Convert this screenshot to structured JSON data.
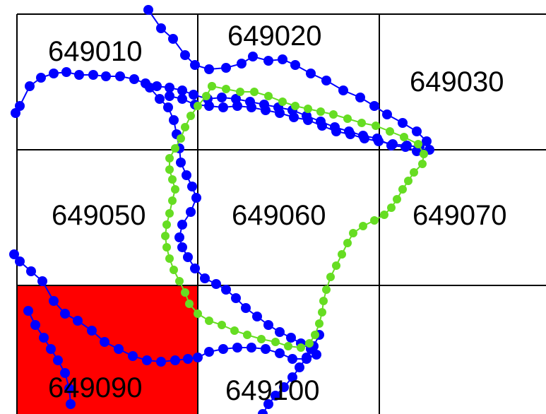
{
  "map": {
    "highlight_color": "#ff0000",
    "grid_color": "#000000",
    "tiles": [
      {
        "id": "649010",
        "highlighted": false
      },
      {
        "id": "649020",
        "highlighted": false
      },
      {
        "id": "649030",
        "highlighted": false
      },
      {
        "id": "649050",
        "highlighted": false
      },
      {
        "id": "649060",
        "highlighted": false
      },
      {
        "id": "649070",
        "highlighted": false
      },
      {
        "id": "649090",
        "highlighted": true
      },
      {
        "id": "649100",
        "highlighted": false
      }
    ],
    "tracks": [
      {
        "color": "#0000ff",
        "style": "line-with-dots"
      },
      {
        "color": "#66dd22",
        "style": "line-with-dots"
      }
    ]
  }
}
